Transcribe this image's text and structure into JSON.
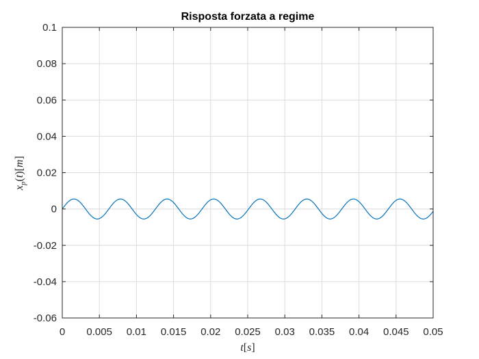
{
  "chart_data": {
    "type": "line",
    "title": "Risposta forzata a regime",
    "xlabel": "t[s]",
    "ylabel": "x_p(t)[m]",
    "xlim": [
      0,
      0.05
    ],
    "ylim": [
      -0.06,
      0.1
    ],
    "xticks": [
      0,
      0.005,
      0.01,
      0.015,
      0.02,
      0.025,
      0.03,
      0.035,
      0.04,
      0.045,
      0.05
    ],
    "xtick_labels": [
      "0",
      "0.005",
      "0.01",
      "0.015",
      "0.02",
      "0.025",
      "0.03",
      "0.035",
      "0.04",
      "0.045",
      "0.05"
    ],
    "yticks": [
      -0.06,
      -0.04,
      -0.02,
      0,
      0.02,
      0.04,
      0.06,
      0.08,
      0.1
    ],
    "ytick_labels": [
      "-0.06",
      "-0.04",
      "-0.02",
      "0",
      "0.02",
      "0.04",
      "0.06",
      "0.08",
      "0.1"
    ],
    "grid": true,
    "series": [
      {
        "color": "#0072BD",
        "function": "sine",
        "amplitude": 0.0055,
        "period": 0.00628,
        "phase": 0,
        "x_start": 0,
        "x_end": 0.05
      }
    ]
  }
}
